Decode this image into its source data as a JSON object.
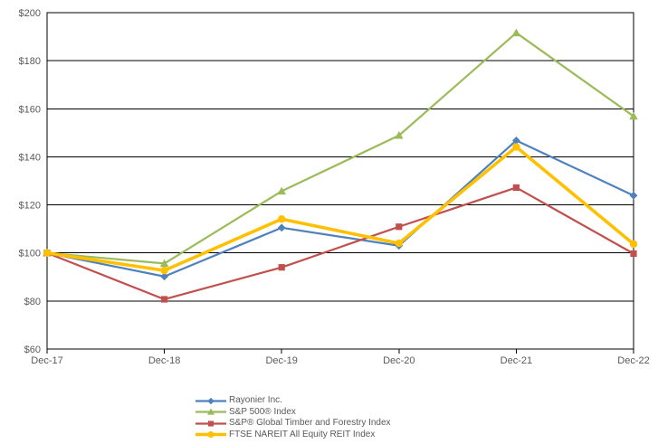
{
  "chart_data": {
    "type": "line",
    "categories": [
      "Dec-17",
      "Dec-18",
      "Dec-19",
      "Dec-20",
      "Dec-21",
      "Dec-22"
    ],
    "series": [
      {
        "name": "Rayonier Inc.",
        "color": "#4F81BD",
        "marker": "diamond",
        "line_width": 2.2,
        "values": [
          100,
          90.2,
          110.5,
          103.0,
          146.8,
          123.9
        ]
      },
      {
        "name": "S&P 500® Index",
        "color": "#9BBB59",
        "marker": "triangle",
        "line_width": 2.2,
        "values": [
          100,
          95.6,
          125.7,
          148.9,
          191.6,
          156.9
        ]
      },
      {
        "name": "S&P® Global Timber and Forestry Index",
        "color": "#C0504D",
        "marker": "square",
        "line_width": 2.2,
        "values": [
          100,
          80.7,
          94.0,
          110.9,
          127.2,
          99.7
        ]
      },
      {
        "name": "FTSE NAREIT All Equity REIT Index",
        "color": "#FFC000",
        "marker": "circle",
        "line_width": 3.6,
        "values": [
          100,
          92.7,
          114.1,
          104.0,
          144.1,
          103.7
        ]
      }
    ],
    "y_axis": {
      "min": 60,
      "max": 200,
      "step": 20,
      "tick_labels": [
        "$200",
        "$180",
        "$160",
        "$140",
        "$120",
        "$100",
        "$80",
        "$60"
      ]
    },
    "x_axis": {
      "tick_labels": [
        "Dec-17",
        "Dec-18",
        "Dec-19",
        "Dec-20",
        "Dec-21",
        "Dec-22"
      ]
    },
    "grid": true,
    "legend_position": "bottom",
    "axis_text_color": "#595959",
    "grid_color": "#000000"
  }
}
